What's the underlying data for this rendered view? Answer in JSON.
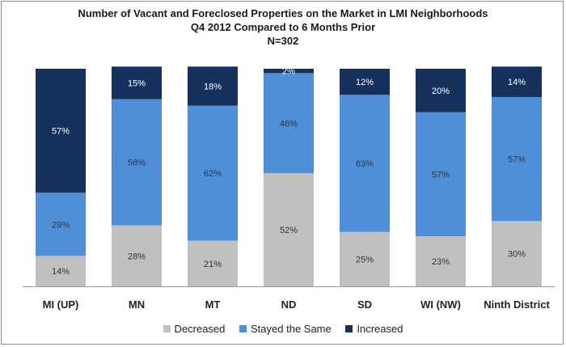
{
  "chart_data": {
    "type": "bar",
    "stacked": true,
    "title": "Number of Vacant and Foreclosed Properties on the Market in LMI Neighborhoods",
    "subtitle": "Q4 2012 Compared to 6 Months Prior",
    "subtitle2": "N=302",
    "categories": [
      "MI (UP)",
      "MN",
      "MT",
      "ND",
      "SD",
      "WI (NW)",
      "Ninth District"
    ],
    "series": [
      {
        "name": "Decreased",
        "color": "#c0c0c0",
        "values": [
          14,
          28,
          21,
          52,
          25,
          23,
          30
        ]
      },
      {
        "name": "Stayed the Same",
        "color": "#4f8ed8",
        "values": [
          29,
          58,
          62,
          46,
          63,
          57,
          57
        ]
      },
      {
        "name": "Increased",
        "color": "#16325c",
        "values": [
          57,
          15,
          18,
          2,
          12,
          20,
          14
        ]
      }
    ],
    "labels": [
      [
        "14%",
        "28%",
        "21%",
        "52%",
        "25%",
        "23%",
        "30%"
      ],
      [
        "29%",
        "58%",
        "62%",
        "46%",
        "63%",
        "57%",
        "57%"
      ],
      [
        "57%",
        "15%",
        "18%",
        "2%",
        "12%",
        "20%",
        "14%"
      ]
    ],
    "ylim": [
      0,
      100
    ],
    "legend_position": "bottom"
  }
}
